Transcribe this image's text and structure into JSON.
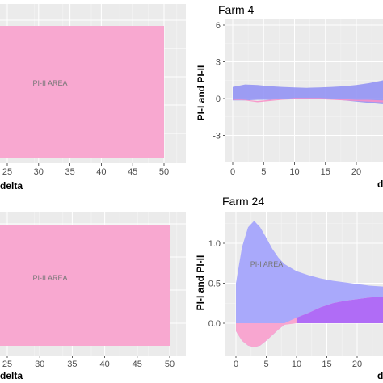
{
  "chart_data": [
    {
      "type": "area",
      "title": "",
      "xlabel": "delta",
      "ylabel": "",
      "xticks": [
        "25",
        "30",
        "35",
        "40",
        "45",
        "50"
      ],
      "annotation": "PI-II AREA",
      "series": [
        {
          "name": "",
          "x": [
            20,
            50
          ],
          "upper": [
            6,
            6
          ],
          "lower": [
            -5.5,
            -5.5
          ]
        }
      ],
      "colors": {
        "pi2": "#f8a8d0"
      }
    },
    {
      "type": "area",
      "title": "Farm 4",
      "xlabel": "d",
      "ylabel": "PI-I and PI-II",
      "xticks": [
        "0",
        "5",
        "10",
        "15",
        "20"
      ],
      "yticks": [
        "-3",
        "0",
        "3",
        "6"
      ],
      "xlim": [
        -1.2,
        27
      ],
      "ylim": [
        -5.5,
        6.4
      ],
      "series": [
        {
          "name": "",
          "x": [
            0,
            2,
            4,
            6,
            8,
            10,
            12,
            14,
            16,
            18,
            20,
            22,
            24,
            26,
            27
          ],
          "upper": [
            0.95,
            1.15,
            1.1,
            1.0,
            0.95,
            0.9,
            0.88,
            0.9,
            0.95,
            1.0,
            1.1,
            1.25,
            1.45,
            1.7,
            1.8
          ],
          "lower": [
            -0.15,
            -0.15,
            -0.1,
            -0.1,
            -0.05,
            0,
            0,
            0,
            -0.05,
            -0.15,
            -0.25,
            -0.35,
            -0.45,
            -0.5,
            -0.55
          ]
        },
        {
          "name": "",
          "x": [
            0,
            2,
            4,
            6,
            8,
            10,
            12,
            14,
            16,
            18,
            20,
            22,
            24,
            26,
            27
          ],
          "upper": [
            -0.05,
            -0.1,
            -0.2,
            -0.1,
            -0.05,
            0.05,
            0.05,
            0.05,
            0,
            -0.05,
            -0.1,
            -0.1,
            -0.15,
            -0.15,
            -0.15
          ],
          "lower": [
            -0.1,
            -0.15,
            -0.3,
            -0.2,
            -0.1,
            -0.05,
            -0.05,
            -0.05,
            -0.1,
            -0.15,
            -0.2,
            -0.25,
            -0.3,
            -0.35,
            -0.35
          ]
        }
      ],
      "colors": {
        "pi1": "#8e8ef5",
        "pi2": "#f890c8"
      }
    },
    {
      "type": "area",
      "title": "",
      "xlabel": "delta",
      "ylabel": "",
      "xticks": [
        "25",
        "30",
        "35",
        "40",
        "45",
        "50"
      ],
      "annotation": "PI-II AREA",
      "series": [
        {
          "name": "",
          "x": [
            20,
            50
          ],
          "upper": [
            1.27,
            1.27
          ],
          "lower": [
            -0.5,
            -0.5
          ]
        }
      ],
      "colors": {
        "pi2": "#f8a8d0"
      }
    },
    {
      "type": "area",
      "title": "Farm 24",
      "xlabel": "d",
      "ylabel": "PI-I and PI-II",
      "xticks": [
        "0",
        "5",
        "10",
        "15",
        "20"
      ],
      "yticks": [
        "0.0",
        "0.5",
        "1.0"
      ],
      "xlim": [
        -1.2,
        27
      ],
      "ylim": [
        -0.4,
        1.55
      ],
      "annotation": "PI-I AREA",
      "series": [
        {
          "name": "",
          "x": [
            0,
            1,
            2,
            3,
            4,
            5,
            6,
            7,
            8,
            10,
            12,
            14,
            16,
            18,
            20,
            22,
            24,
            27
          ],
          "upper": [
            0.5,
            0.95,
            1.2,
            1.28,
            1.2,
            1.07,
            0.93,
            0.82,
            0.74,
            0.65,
            0.6,
            0.56,
            0.53,
            0.51,
            0.49,
            0.47,
            0.46,
            0.44
          ],
          "lower": [
            -0.1,
            -0.22,
            -0.28,
            -0.3,
            -0.28,
            -0.22,
            -0.15,
            -0.08,
            -0.02,
            0.07,
            0.13,
            0.2,
            0.25,
            0.28,
            0.3,
            0.32,
            0.33,
            0.34
          ]
        },
        {
          "name": "",
          "x": [
            0,
            1,
            2,
            3,
            4,
            5,
            6,
            7,
            8,
            10,
            12,
            14,
            16,
            18,
            20,
            22,
            24,
            27
          ],
          "upper": [
            0,
            0,
            0,
            0,
            0,
            0,
            0,
            0,
            0,
            0.07,
            0.13,
            0.2,
            0.25,
            0.28,
            0.3,
            0.32,
            0.33,
            0.34
          ],
          "lower": [
            -0.1,
            -0.22,
            -0.28,
            -0.3,
            -0.28,
            -0.22,
            -0.15,
            -0.08,
            -0.02,
            0,
            0,
            0,
            0,
            0,
            0,
            0,
            0,
            0
          ]
        }
      ],
      "colors": {
        "pi1": "#a9a9fb",
        "pi2": "#f8a6d0",
        "overlap": "#b06cf6"
      }
    }
  ]
}
